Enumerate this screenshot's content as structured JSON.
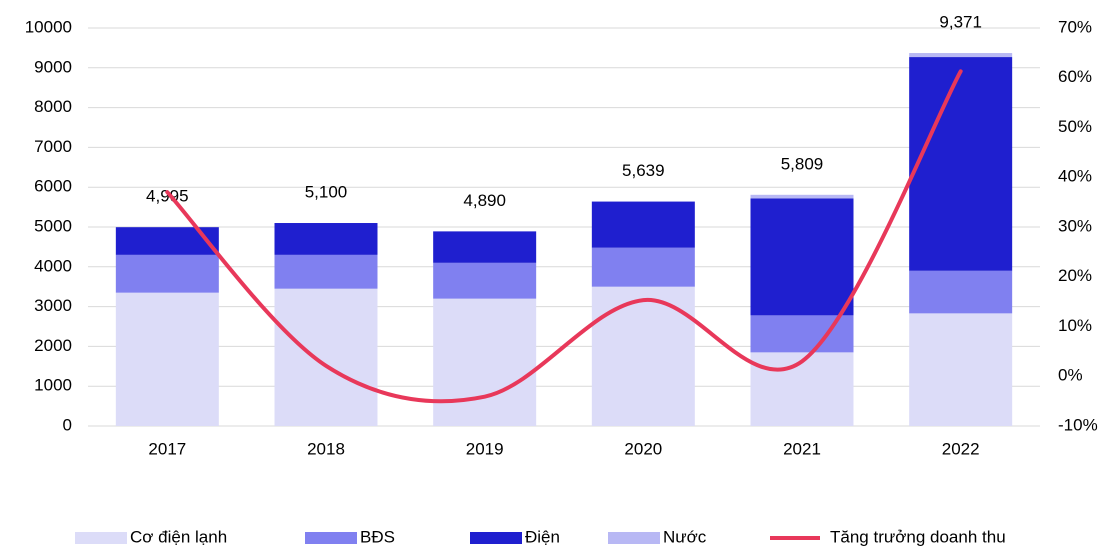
{
  "chart_data": {
    "type": "stacked_bar_line",
    "categories": [
      "2017",
      "2018",
      "2019",
      "2020",
      "2021",
      "2022"
    ],
    "series": [
      {
        "name": "Cơ điện lạnh",
        "color": "#dcdcf8",
        "values": [
          3350,
          3450,
          3200,
          3500,
          1850,
          2830
        ]
      },
      {
        "name": "BĐS",
        "color": "#8080f0",
        "values": [
          950,
          850,
          900,
          980,
          930,
          1070
        ]
      },
      {
        "name": "Điện",
        "color": "#1f1fcf",
        "values": [
          695,
          800,
          790,
          1159,
          2940,
          5370
        ]
      },
      {
        "name": "Nước",
        "color": "#b8b8f4",
        "values": [
          0,
          0,
          0,
          0,
          89,
          101
        ]
      },
      {
        "name": "Tăng trưởng doanh thu",
        "color": "#e8385a",
        "axis": "y2",
        "values": [
          37,
          2.1,
          -4.1,
          15.3,
          3.0,
          61.3
        ]
      }
    ],
    "totals": [
      4995,
      5100,
      4890,
      5639,
      5809,
      9371
    ],
    "total_labels": [
      "4,995",
      "5,100",
      "4,890",
      "5,639",
      "5,809",
      "9,371"
    ],
    "ylim": [
      0,
      10000
    ],
    "yticks": [
      0,
      1000,
      2000,
      3000,
      4000,
      5000,
      6000,
      7000,
      8000,
      9000,
      10000
    ],
    "y2lim": [
      -10,
      70
    ],
    "y2ticks": [
      {
        "value": -10,
        "label": "-10%"
      },
      {
        "value": 0,
        "label": "0%"
      },
      {
        "value": 10,
        "label": "10%"
      },
      {
        "value": 20,
        "label": "20%"
      },
      {
        "value": 30,
        "label": "30%"
      },
      {
        "value": 40,
        "label": "40%"
      },
      {
        "value": 50,
        "label": "50%"
      },
      {
        "value": 60,
        "label": "60%"
      },
      {
        "value": 70,
        "label": "70%"
      }
    ],
    "grid": true,
    "legend": "bottom"
  }
}
